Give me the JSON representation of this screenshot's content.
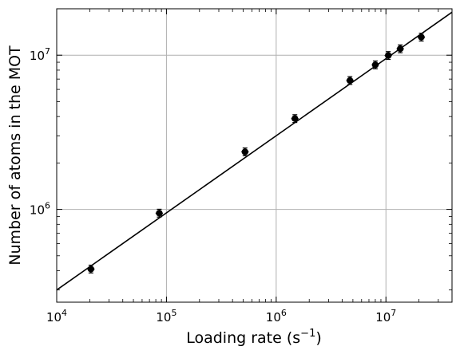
{
  "chart_data": {
    "type": "scatter",
    "title": "",
    "xlabel_main": "Loading rate (s",
    "xlabel_sup": "−1",
    "xlabel_end": ")",
    "ylabel": "Number of atoms in the MOT",
    "xscale": "log",
    "yscale": "log",
    "xlim": [
      10000,
      40000000
    ],
    "ylim": [
      250000,
      20000000
    ],
    "grid": true,
    "x_ticks": [
      {
        "value": 10000,
        "base": "10",
        "exp": "4"
      },
      {
        "value": 100000,
        "base": "10",
        "exp": "5"
      },
      {
        "value": 1000000,
        "base": "10",
        "exp": "6"
      },
      {
        "value": 10000000,
        "base": "10",
        "exp": "7"
      }
    ],
    "y_ticks": [
      {
        "value": 1000000,
        "base": "10",
        "exp": "6"
      },
      {
        "value": 10000000,
        "base": "10",
        "exp": "7"
      }
    ],
    "series": [
      {
        "kind": "points_with_error_bars",
        "color": "#000000",
        "points": [
          {
            "x": 20500,
            "y": 410000
          },
          {
            "x": 86000,
            "y": 945000
          },
          {
            "x": 520000,
            "y": 2360000
          },
          {
            "x": 1480000,
            "y": 3880000
          },
          {
            "x": 4700000,
            "y": 6850000
          },
          {
            "x": 8000000,
            "y": 8650000
          },
          {
            "x": 10500000,
            "y": 9950000
          },
          {
            "x": 13500000,
            "y": 11000000
          },
          {
            "x": 21000000,
            "y": 13100000
          }
        ],
        "y_error_factor": 1.06,
        "x_error_factor": 1.08
      },
      {
        "kind": "fit_line",
        "color": "#000000",
        "x": [
          10000,
          40000000
        ],
        "y": [
          300000,
          19000000
        ]
      }
    ]
  }
}
